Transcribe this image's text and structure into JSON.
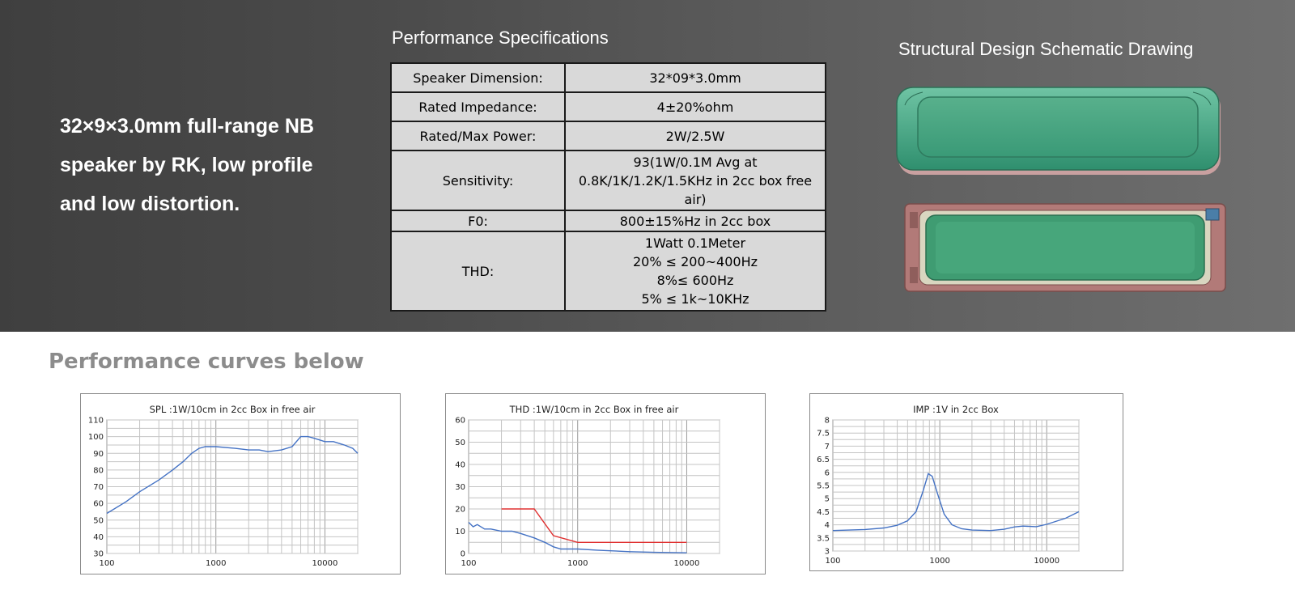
{
  "intro": {
    "line1": "32×9×3.0mm full-range NB",
    "line2": "speaker by RK, low profile",
    "line3": "and low distortion."
  },
  "specs": {
    "title": "Performance Specifications",
    "rows": [
      {
        "label": "Speaker Dimension:",
        "value": [
          "32*09*3.0mm"
        ]
      },
      {
        "label": "Rated Impedance:",
        "value": [
          "4±20%ohm"
        ]
      },
      {
        "label": "Rated/Max Power:",
        "value": [
          "2W/2.5W"
        ]
      },
      {
        "label": "Sensitivity:",
        "value": [
          "93(1W/0.1M Avg at",
          "0.8K/1K/1.2K/1.5KHz  in 2cc box  free",
          "air)"
        ]
      },
      {
        "label": "F0:",
        "value": [
          "800±15%Hz in 2cc box"
        ]
      },
      {
        "label": "THD:",
        "value": [
          "1Watt 0.1Meter",
          "20% ≤ 200~400Hz",
          "8%≤ 600Hz",
          "5% ≤ 1k~10KHz"
        ]
      }
    ]
  },
  "schematic": {
    "title": "Structural Design Schematic Drawing"
  },
  "curves": {
    "title": "Performance curves below"
  },
  "chart_data": [
    {
      "type": "line",
      "title": "SPL :1W/10cm in 2cc Box in free air",
      "xscale": "log",
      "xlim": [
        100,
        20000
      ],
      "ylim": [
        30,
        110
      ],
      "yticks": [
        30,
        40,
        50,
        60,
        70,
        80,
        90,
        100,
        110
      ],
      "xticks": [
        100,
        1000,
        10000
      ],
      "grid": true,
      "series": [
        {
          "color": "#4472c4",
          "points": [
            [
              100,
              54
            ],
            [
              150,
              61
            ],
            [
              200,
              67
            ],
            [
              300,
              74
            ],
            [
              400,
              80
            ],
            [
              500,
              85
            ],
            [
              600,
              90
            ],
            [
              700,
              93
            ],
            [
              800,
              94
            ],
            [
              1000,
              94
            ],
            [
              1500,
              93
            ],
            [
              2000,
              92
            ],
            [
              2500,
              92
            ],
            [
              3000,
              91
            ],
            [
              4000,
              92
            ],
            [
              5000,
              94
            ],
            [
              6000,
              100
            ],
            [
              7000,
              100
            ],
            [
              8000,
              99
            ],
            [
              10000,
              97
            ],
            [
              12000,
              97
            ],
            [
              15000,
              95
            ],
            [
              18000,
              93
            ],
            [
              20000,
              90
            ]
          ]
        }
      ]
    },
    {
      "type": "line",
      "title": "THD :1W/10cm in 2cc Box in free air",
      "xscale": "log",
      "xlim": [
        100,
        20000
      ],
      "ylim": [
        0,
        60
      ],
      "yticks": [
        0,
        10,
        20,
        30,
        40,
        50,
        60
      ],
      "xticks": [
        100,
        1000,
        10000
      ],
      "grid": true,
      "series": [
        {
          "color": "#4472c4",
          "points": [
            [
              100,
              14
            ],
            [
              110,
              12
            ],
            [
              120,
              13
            ],
            [
              140,
              11
            ],
            [
              160,
              11
            ],
            [
              200,
              10
            ],
            [
              250,
              10
            ],
            [
              300,
              9
            ],
            [
              400,
              7
            ],
            [
              500,
              5
            ],
            [
              600,
              3
            ],
            [
              700,
              2
            ],
            [
              800,
              2
            ],
            [
              1000,
              2
            ],
            [
              1500,
              1.5
            ],
            [
              2000,
              1.2
            ],
            [
              3000,
              0.8
            ],
            [
              5000,
              0.5
            ],
            [
              10000,
              0.3
            ]
          ]
        },
        {
          "color": "#e03030",
          "points": [
            [
              200,
              20
            ],
            [
              400,
              20
            ],
            [
              600,
              8
            ],
            [
              1000,
              5
            ],
            [
              10000,
              5
            ]
          ]
        }
      ]
    },
    {
      "type": "line",
      "title": "IMP :1V in 2cc Box",
      "xscale": "log",
      "xlim": [
        100,
        20000
      ],
      "ylim": [
        3,
        8
      ],
      "yticks": [
        3,
        3.5,
        4,
        4.5,
        5,
        5.5,
        6,
        6.5,
        7,
        7.5,
        8
      ],
      "xticks": [
        100,
        1000,
        10000
      ],
      "grid": true,
      "series": [
        {
          "color": "#4472c4",
          "points": [
            [
              100,
              3.78
            ],
            [
              200,
              3.82
            ],
            [
              300,
              3.88
            ],
            [
              400,
              3.98
            ],
            [
              500,
              4.15
            ],
            [
              600,
              4.5
            ],
            [
              700,
              5.3
            ],
            [
              780,
              5.95
            ],
            [
              850,
              5.85
            ],
            [
              950,
              5.2
            ],
            [
              1100,
              4.4
            ],
            [
              1300,
              4.0
            ],
            [
              1600,
              3.85
            ],
            [
              2000,
              3.8
            ],
            [
              3000,
              3.78
            ],
            [
              4000,
              3.83
            ],
            [
              5000,
              3.92
            ],
            [
              6000,
              3.95
            ],
            [
              8000,
              3.93
            ],
            [
              10000,
              4.02
            ],
            [
              15000,
              4.25
            ],
            [
              20000,
              4.5
            ]
          ]
        }
      ]
    }
  ]
}
